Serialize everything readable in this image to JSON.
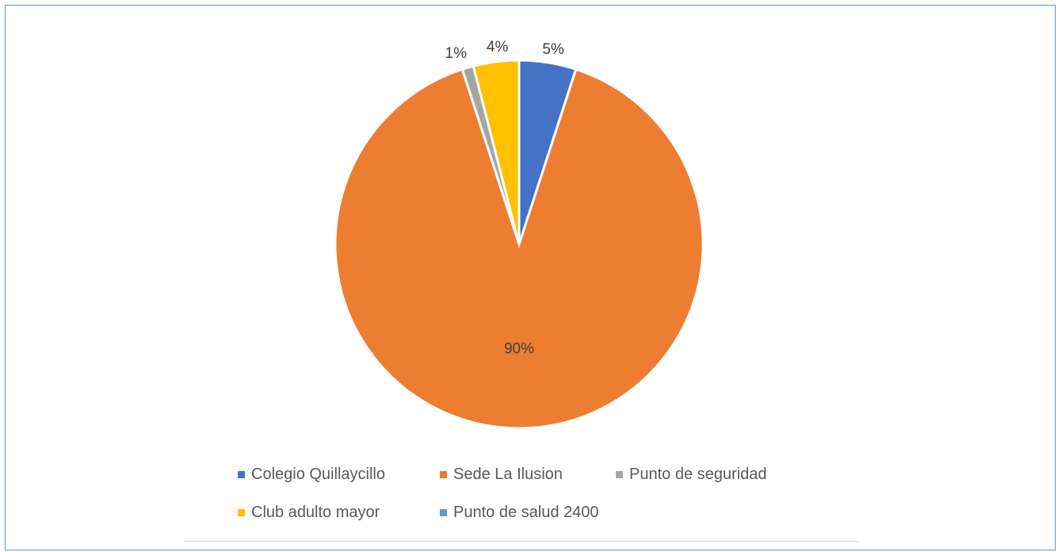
{
  "chart_data": {
    "type": "pie",
    "title": "",
    "slices": [
      {
        "label": "Colegio Quillaycillo",
        "value": 5,
        "data_label": "5%",
        "color": "#4472c4"
      },
      {
        "label": "Sede La Ilusion",
        "value": 90,
        "data_label": "90%",
        "color": "#ed7d31"
      },
      {
        "label": "Punto de seguridad",
        "value": 1,
        "data_label": "1%",
        "color": "#a5a5a5"
      },
      {
        "label": "Club adulto mayor",
        "value": 4,
        "data_label": "4%",
        "color": "#ffc000"
      },
      {
        "label": "Punto de salud 2400",
        "value": 0,
        "data_label": "",
        "color": "#5b9bd5"
      }
    ],
    "slice_order_clockwise_from_top": [
      "Colegio Quillaycillo",
      "Sede La Ilusion",
      "Punto de seguridad",
      "Club adulto mayor",
      "Punto de salud 2400"
    ],
    "legend_position": "bottom"
  },
  "legend": {
    "items": [
      {
        "label": "Colegio Quillaycillo",
        "color": "#4472c4"
      },
      {
        "label": "Sede La Ilusion",
        "color": "#ed7d31"
      },
      {
        "label": "Punto de seguridad",
        "color": "#a5a5a5"
      },
      {
        "label": "Club adulto mayor",
        "color": "#ffc000"
      },
      {
        "label": "Punto de salud 2400",
        "color": "#5b9bd5"
      }
    ]
  },
  "colors": {
    "border": "#5b9bd5",
    "label_text": "#404040",
    "legend_text": "#595959"
  }
}
